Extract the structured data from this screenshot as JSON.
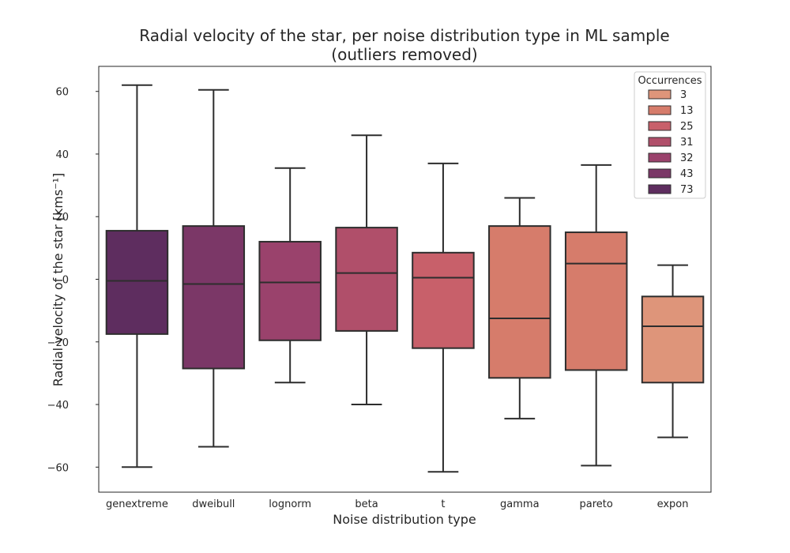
{
  "chart_data": {
    "type": "box",
    "title": "Radial velocity of the star, per noise distribution type in ML sample",
    "subtitle": "(outliers removed)",
    "xlabel": "Noise distribution type",
    "ylabel": "Radial velocity of the star [kms⁻¹]",
    "ylim": [
      -68,
      68
    ],
    "yticks": [
      -60,
      -40,
      -20,
      0,
      20,
      40,
      60
    ],
    "grid": false,
    "categories": [
      "genextreme",
      "dweibull",
      "lognorm",
      "beta",
      "t",
      "gamma",
      "pareto",
      "expon"
    ],
    "boxes": [
      {
        "category": "genextreme",
        "whisker_low": -60.0,
        "q1": -17.5,
        "median": -0.5,
        "q3": 15.5,
        "whisker_high": 62.0,
        "occurrences": 73,
        "color": "#5e2d5f"
      },
      {
        "category": "dweibull",
        "whisker_low": -53.5,
        "q1": -28.5,
        "median": -1.5,
        "q3": 17.0,
        "whisker_high": 60.5,
        "occurrences": 43,
        "color": "#7b3767"
      },
      {
        "category": "lognorm",
        "whisker_low": -33.0,
        "q1": -19.5,
        "median": -1.0,
        "q3": 12.0,
        "whisker_high": 35.5,
        "occurrences": 32,
        "color": "#9a426c"
      },
      {
        "category": "beta",
        "whisker_low": -40.0,
        "q1": -16.5,
        "median": 2.0,
        "q3": 16.5,
        "whisker_high": 46.0,
        "occurrences": 31,
        "color": "#b04f6a"
      },
      {
        "category": "t",
        "whisker_low": -61.5,
        "q1": -22.0,
        "median": 0.5,
        "q3": 8.5,
        "whisker_high": 37.0,
        "occurrences": 25,
        "color": "#c8606a"
      },
      {
        "category": "gamma",
        "whisker_low": -44.5,
        "q1": -31.5,
        "median": -12.5,
        "q3": 17.0,
        "whisker_high": 26.0,
        "occurrences": 13,
        "color": "#d67c6b"
      },
      {
        "category": "pareto",
        "whisker_low": -59.5,
        "q1": -29.0,
        "median": 5.0,
        "q3": 15.0,
        "whisker_high": 36.5,
        "occurrences": 13,
        "color": "#d67c6b"
      },
      {
        "category": "expon",
        "whisker_low": -50.5,
        "q1": -33.0,
        "median": -15.0,
        "q3": -5.5,
        "whisker_high": 4.5,
        "occurrences": 3,
        "color": "#de957a"
      }
    ],
    "legend": {
      "title": "Occurrences",
      "placement": "top-right",
      "entries": [
        {
          "label": "3",
          "color": "#de957a"
        },
        {
          "label": "13",
          "color": "#d67c6b"
        },
        {
          "label": "25",
          "color": "#c8606a"
        },
        {
          "label": "31",
          "color": "#b04f6a"
        },
        {
          "label": "32",
          "color": "#9a426c"
        },
        {
          "label": "43",
          "color": "#7b3767"
        },
        {
          "label": "73",
          "color": "#5e2d5f"
        }
      ]
    }
  }
}
